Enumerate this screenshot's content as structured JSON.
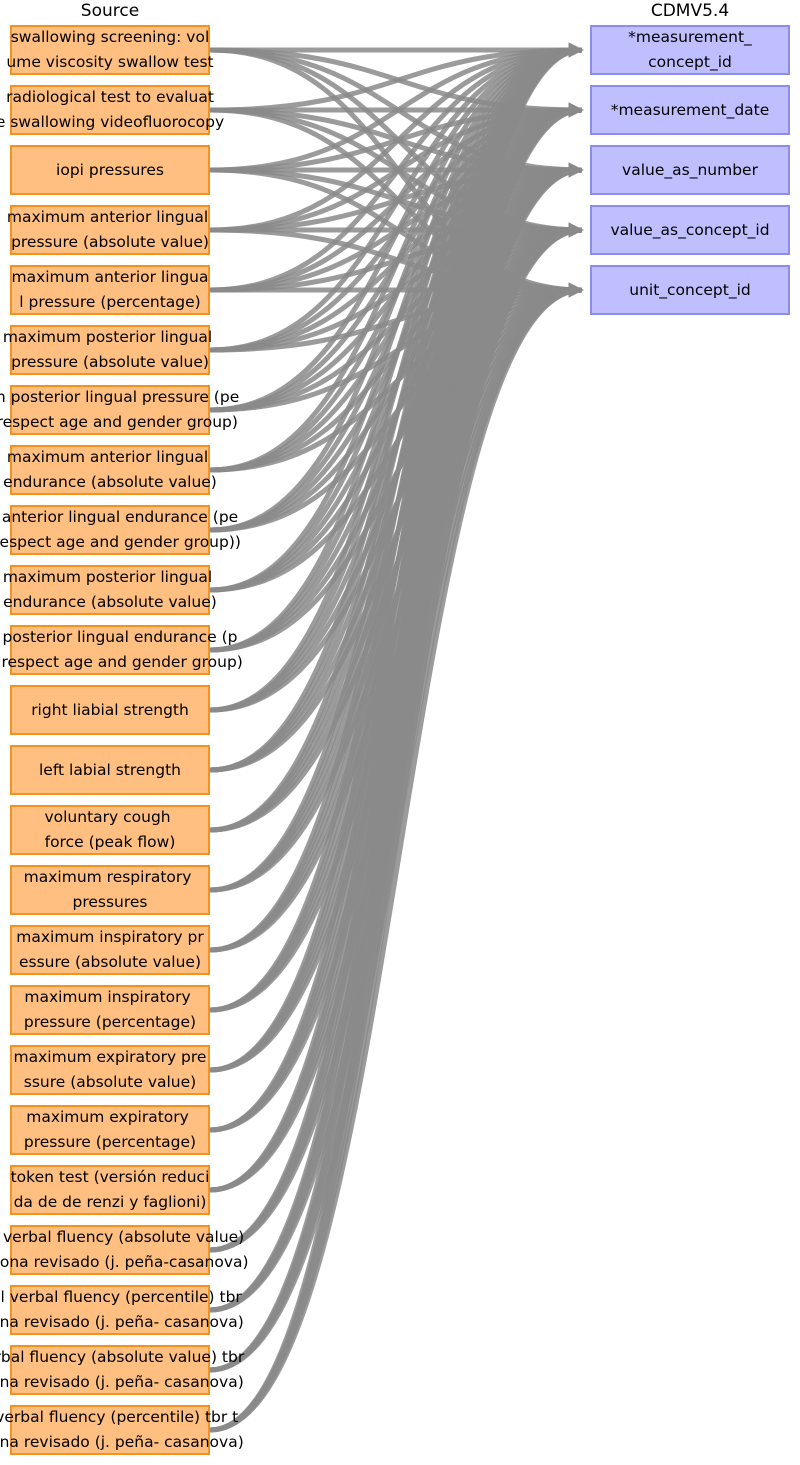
{
  "headers": {
    "source": "Source",
    "target": "CDMV5.4"
  },
  "colors": {
    "source_fill": "#ffbf80",
    "source_border": "#f5921e",
    "target_fill": "#bfbfff",
    "target_border": "#8c8ced",
    "link": "#8a8a8a"
  },
  "sources": [
    {
      "label": "swallowing screening: vol\nume viscosity swallow test"
    },
    {
      "label": "radiological test to evaluat\ne swallowing videofluorocopy"
    },
    {
      "label": "iopi pressures"
    },
    {
      "label": "maximum anterior lingual \npressure (absolute value)"
    },
    {
      "label": "maximum anterior lingua\nl pressure (percentage)"
    },
    {
      "label": "maximum posterior lingual \npressure (absolute value)"
    },
    {
      "label": "um posterior lingual pressure (pe\ne respect age and gender group)"
    },
    {
      "label": "maximum anterior lingual \nendurance (absolute value)"
    },
    {
      "label": "m anterior lingual endurance (pe\ne respect age and gender group))"
    },
    {
      "label": "maximum posterior lingual \nendurance (absolute value)"
    },
    {
      "label": "m posterior lingual endurance (p\nge respect age and gender group)"
    },
    {
      "label": "right liabial strength"
    },
    {
      "label": "left labial strength"
    },
    {
      "label": "voluntary cough \nforce (peak flow)"
    },
    {
      "label": "maximum respiratory \npressures"
    },
    {
      "label": "maximum inspiratory pr\nessure (absolute value)"
    },
    {
      "label": "maximum inspiratory \npressure (percentage)"
    },
    {
      "label": "maximum expiratory pre\nssure (absolute value)"
    },
    {
      "label": "maximum expiratory \npressure (percentage)"
    },
    {
      "label": "token test (versión reduci\nda de de renzi y faglioni)"
    },
    {
      "label": "cal verbal fluency (absolute value)\nrcelona revisado (j. peña-casanova)"
    },
    {
      "label": "ical verbal fluency (percentile) tbr\nelona revisado (j. peña- casanova)"
    },
    {
      "label": "verbal fluency (absolute value) tbr\nelona revisado (j. peña- casanova)"
    },
    {
      "label": "c verbal fluency (percentile) tbr t\nelona revisado (j. peña- casanova)"
    }
  ],
  "targets": [
    {
      "label": "*measurement_\nconcept_id"
    },
    {
      "label": "*measurement_date"
    },
    {
      "label": "value_as_number"
    },
    {
      "label": "value_as_concept_id"
    },
    {
      "label": "unit_concept_id"
    }
  ]
}
